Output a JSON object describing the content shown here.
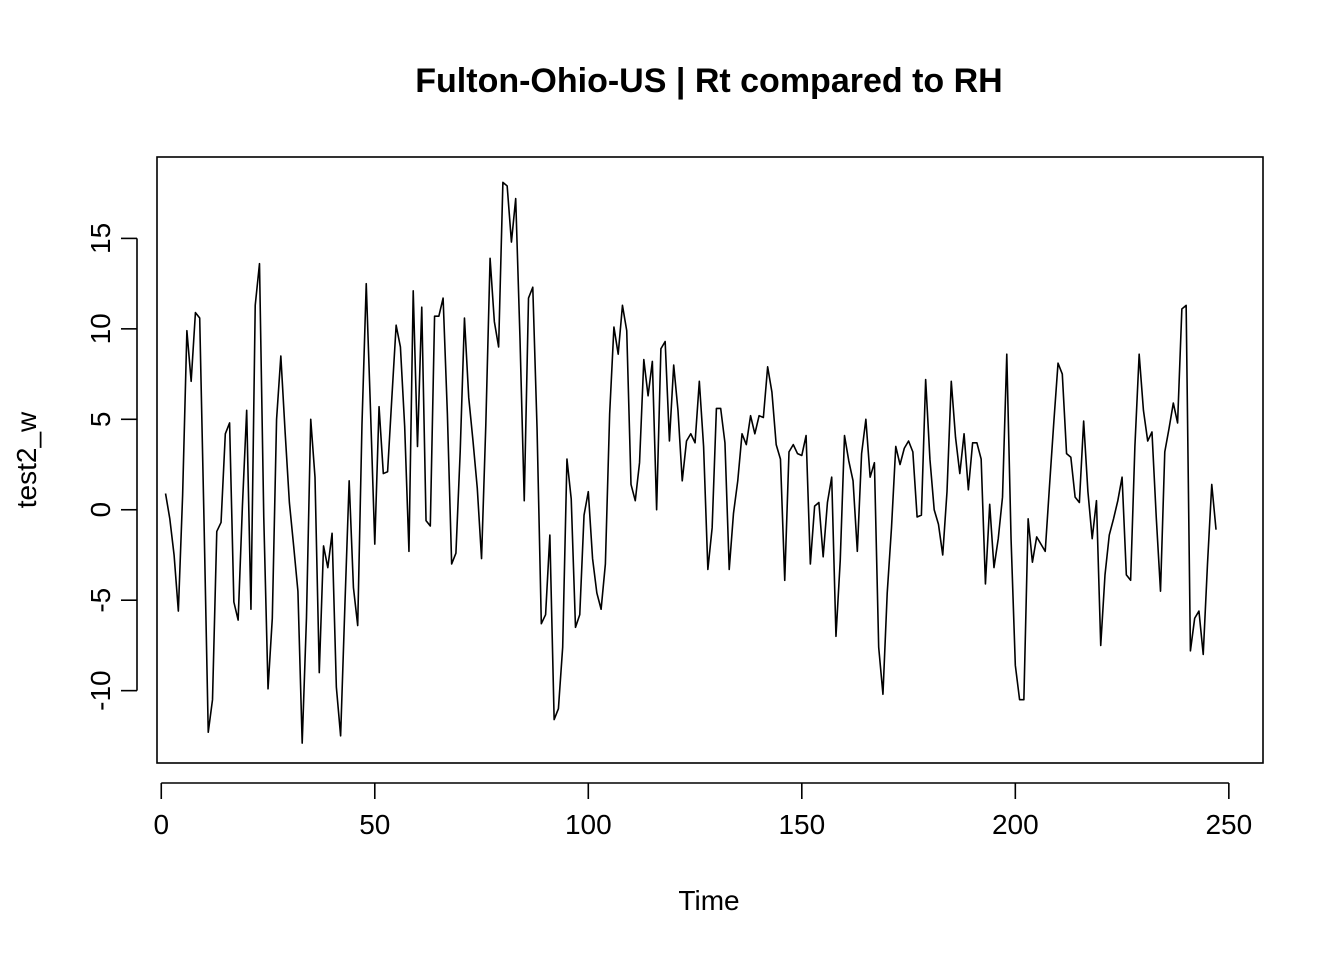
{
  "chart_data": {
    "type": "line",
    "title": "Fulton-Ohio-US | Rt compared to RH",
    "xlabel": "Time",
    "ylabel": "test2_w",
    "xlim": [
      -1,
      258
    ],
    "ylim": [
      -14,
      19.5
    ],
    "x_ticks": [
      0,
      50,
      100,
      150,
      200,
      250
    ],
    "x_tick_labels": [
      "0",
      "50",
      "100",
      "150",
      "200",
      "250"
    ],
    "y_ticks": [
      -10,
      -5,
      0,
      5,
      10,
      15
    ],
    "y_tick_labels": [
      "-10",
      "-5",
      "0",
      "5",
      "10",
      "15"
    ],
    "grid": false,
    "legend": "none",
    "line_color": "#000000",
    "x_start": 1,
    "values": [
      0.9,
      -0.5,
      -2.5,
      -5.6,
      0.8,
      9.9,
      7.1,
      10.9,
      10.6,
      -0.5,
      -12.3,
      -10.5,
      -1.2,
      -0.7,
      4.2,
      4.8,
      -5.1,
      -6.1,
      0.2,
      5.5,
      -5.5,
      11.3,
      13.6,
      -0.4,
      -9.9,
      -6.0,
      5.0,
      8.5,
      4.3,
      0.4,
      -2.0,
      -4.5,
      -12.9,
      -6.0,
      5.0,
      1.8,
      -9.0,
      -2.0,
      -3.2,
      -1.3,
      -9.8,
      -12.5,
      -5.3,
      1.6,
      -4.3,
      -6.4,
      4.7,
      12.5,
      5.5,
      -1.9,
      5.7,
      2.0,
      2.1,
      6.2,
      10.2,
      9.0,
      4.6,
      -2.3,
      12.1,
      3.5,
      11.2,
      -0.6,
      -0.9,
      10.7,
      10.7,
      11.7,
      5.3,
      -3.0,
      -2.4,
      3.2,
      10.6,
      6.2,
      3.8,
      1.2,
      -2.7,
      4.7,
      13.9,
      10.4,
      9.0,
      18.1,
      17.9,
      14.8,
      17.2,
      9.5,
      0.5,
      11.7,
      12.3,
      4.5,
      -6.3,
      -5.8,
      -1.4,
      -11.6,
      -11.0,
      -7.6,
      2.8,
      0.6,
      -6.5,
      -5.8,
      -0.3,
      1.0,
      -2.7,
      -4.6,
      -5.5,
      -3.0,
      5.3,
      10.1,
      8.6,
      11.3,
      9.9,
      1.4,
      0.5,
      2.6,
      8.3,
      6.3,
      8.2,
      0.0,
      8.9,
      9.3,
      3.8,
      8.0,
      5.5,
      1.6,
      3.8,
      4.2,
      3.7,
      7.1,
      3.5,
      -3.3,
      -1.0,
      5.6,
      5.6,
      3.7,
      -3.3,
      -0.2,
      1.6,
      4.2,
      3.6,
      5.2,
      4.2,
      5.2,
      5.1,
      7.9,
      6.5,
      3.6,
      2.8,
      -3.9,
      3.2,
      3.6,
      3.1,
      3.0,
      4.1,
      -3.0,
      0.2,
      0.4,
      -2.6,
      0.4,
      1.8,
      -7.0,
      -2.8,
      4.1,
      2.7,
      1.6,
      -2.3,
      3.1,
      5.0,
      1.8,
      2.6,
      -7.6,
      -10.2,
      -4.6,
      -1.0,
      3.5,
      2.5,
      3.4,
      3.8,
      3.2,
      -0.4,
      -0.3,
      7.2,
      2.8,
      0.0,
      -0.8,
      -2.5,
      1.0,
      7.1,
      4.0,
      2.0,
      4.2,
      1.1,
      3.7,
      3.7,
      2.8,
      -4.1,
      0.3,
      -3.2,
      -1.6,
      0.7,
      8.6,
      -1.6,
      -8.6,
      -10.5,
      -10.5,
      -0.5,
      -2.9,
      -1.5,
      -1.9,
      -2.3,
      1.3,
      4.8,
      8.1,
      7.5,
      3.1,
      2.9,
      0.7,
      0.4,
      4.9,
      1.0,
      -1.6,
      0.5,
      -7.5,
      -3.6,
      -1.4,
      -0.5,
      0.5,
      1.8,
      -3.6,
      -3.9,
      3.5,
      8.6,
      5.5,
      3.8,
      4.3,
      -0.4,
      -4.5,
      3.2,
      4.5,
      5.9,
      4.8,
      11.1,
      11.3,
      -7.8,
      -6.0,
      -5.6,
      -8.0,
      -3.0,
      1.4,
      -1.1
    ]
  }
}
